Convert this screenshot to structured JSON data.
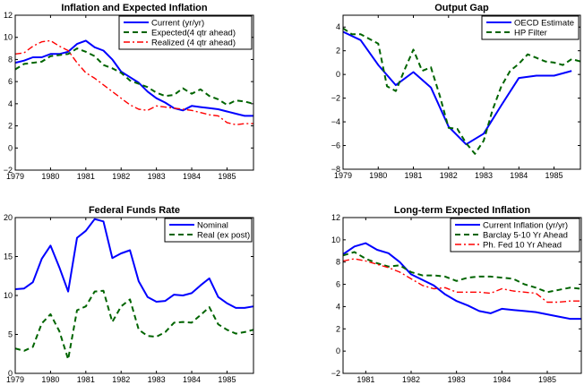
{
  "chart_data": [
    {
      "type": "line",
      "title": "Inflation and Expected Inflation",
      "xlabel": "",
      "ylabel": "",
      "xlim": [
        1979,
        1985.75
      ],
      "ylim": [
        -2,
        12
      ],
      "xticks": [
        1979,
        1980,
        1981,
        1982,
        1983,
        1984,
        1985
      ],
      "yticks": [
        -2,
        0,
        2,
        4,
        6,
        8,
        10,
        12
      ],
      "grid": false,
      "legend_position": "top-right",
      "x": [
        1979,
        1979.25,
        1979.5,
        1979.75,
        1980,
        1980.25,
        1980.5,
        1980.75,
        1981,
        1981.25,
        1981.5,
        1981.75,
        1982,
        1982.25,
        1982.5,
        1982.75,
        1983,
        1983.25,
        1983.5,
        1983.75,
        1984,
        1984.25,
        1984.5,
        1984.75,
        1985,
        1985.25,
        1985.5,
        1985.75
      ],
      "series": [
        {
          "name": "Current (yr/yr)",
          "style": "solid",
          "color": "#0000ff",
          "values": [
            7.7,
            7.9,
            8.2,
            8.2,
            8.5,
            8.5,
            8.7,
            9.4,
            9.7,
            9.1,
            8.8,
            8.0,
            6.9,
            6.4,
            5.9,
            5.1,
            4.5,
            4.1,
            3.6,
            3.4,
            3.8,
            3.7,
            3.6,
            3.5,
            3.3,
            3.1,
            2.9,
            2.9
          ]
        },
        {
          "name": "Expected(4 qtr ahead)",
          "style": "dashed",
          "color": "#006400",
          "values": [
            7.1,
            7.6,
            7.7,
            7.8,
            8.3,
            8.4,
            8.5,
            9.0,
            8.7,
            8.3,
            7.5,
            7.2,
            6.8,
            6.1,
            5.8,
            5.5,
            5.0,
            4.7,
            4.8,
            5.4,
            4.9,
            5.3,
            4.7,
            4.4,
            3.9,
            4.3,
            4.2,
            4.0
          ]
        },
        {
          "name": "Realized (4 qtr ahead)",
          "style": "dashdot",
          "color": "#ff0000",
          "values": [
            8.5,
            8.6,
            9.2,
            9.6,
            9.7,
            9.2,
            8.8,
            7.7,
            6.8,
            6.3,
            5.7,
            5.1,
            4.5,
            3.9,
            3.5,
            3.4,
            3.8,
            3.7,
            3.6,
            3.5,
            3.4,
            3.2,
            3.0,
            2.9,
            2.3,
            2.1,
            2.2,
            2.2
          ]
        }
      ]
    },
    {
      "type": "line",
      "title": "Output Gap",
      "xlabel": "",
      "ylabel": "",
      "xlim": [
        1979,
        1985.75
      ],
      "ylim": [
        -8,
        5
      ],
      "xticks": [
        1979,
        1980,
        1981,
        1982,
        1983,
        1984,
        1985
      ],
      "yticks": [
        -8,
        -6,
        -4,
        -2,
        0,
        2,
        4
      ],
      "grid": false,
      "legend_position": "top-right",
      "series": [
        {
          "name": "OECD Estimate",
          "style": "solid",
          "color": "#0000ff",
          "x": [
            1979,
            1979.5,
            1980,
            1980.5,
            1981,
            1981.5,
            1982,
            1982.5,
            1983,
            1983.5,
            1984,
            1984.5,
            1985,
            1985.5
          ],
          "values": [
            3.6,
            2.9,
            0.8,
            -0.9,
            0.2,
            -1.1,
            -4.4,
            -5.9,
            -5.0,
            -2.6,
            -0.3,
            -0.1,
            -0.1,
            0.3
          ]
        },
        {
          "name": "HP Filter",
          "style": "dashed",
          "color": "#006400",
          "x": [
            1979,
            1979.25,
            1979.5,
            1979.75,
            1980,
            1980.25,
            1980.5,
            1980.75,
            1981,
            1981.25,
            1981.5,
            1981.75,
            1982,
            1982.25,
            1982.5,
            1982.75,
            1983,
            1983.25,
            1983.5,
            1983.75,
            1984,
            1984.25,
            1984.5,
            1984.75,
            1985,
            1985.25,
            1985.5,
            1985.75
          ],
          "values": [
            3.9,
            3.4,
            3.4,
            3.0,
            2.6,
            -1.0,
            -1.4,
            0.4,
            2.1,
            0.3,
            0.6,
            -1.8,
            -4.5,
            -4.6,
            -5.8,
            -6.7,
            -5.6,
            -3.0,
            -1.0,
            0.3,
            0.9,
            1.7,
            1.4,
            1.1,
            1.0,
            0.8,
            1.3,
            1.1
          ]
        }
      ]
    },
    {
      "type": "line",
      "title": "Federal Funds Rate",
      "xlabel": "",
      "ylabel": "",
      "xlim": [
        1979,
        1985.75
      ],
      "ylim": [
        0,
        20
      ],
      "xticks": [
        1979,
        1980,
        1981,
        1982,
        1983,
        1984,
        1985
      ],
      "yticks": [
        0,
        5,
        10,
        15,
        20
      ],
      "grid": false,
      "legend_position": "top-right",
      "x": [
        1979,
        1979.25,
        1979.5,
        1979.75,
        1980,
        1980.25,
        1980.5,
        1980.75,
        1981,
        1981.25,
        1981.5,
        1981.75,
        1982,
        1982.25,
        1982.5,
        1982.75,
        1983,
        1983.25,
        1983.5,
        1983.75,
        1984,
        1984.25,
        1984.5,
        1984.75,
        1985,
        1985.25,
        1985.5,
        1985.75
      ],
      "series": [
        {
          "name": "Nominal",
          "style": "solid",
          "color": "#0000ff",
          "values": [
            10.8,
            10.9,
            11.7,
            14.7,
            16.4,
            13.6,
            10.5,
            17.4,
            18.3,
            19.8,
            19.5,
            14.8,
            15.4,
            15.8,
            11.8,
            9.8,
            9.2,
            9.3,
            10.1,
            10.0,
            10.3,
            11.3,
            12.2,
            9.8,
            9.0,
            8.4,
            8.4,
            8.6
          ]
        },
        {
          "name": "Real (ex post)",
          "style": "dashed",
          "color": "#006400",
          "values": [
            3.2,
            2.9,
            3.4,
            6.4,
            7.6,
            5.4,
            1.8,
            8.1,
            8.6,
            10.5,
            10.6,
            6.6,
            8.6,
            9.5,
            5.6,
            4.8,
            4.7,
            5.3,
            6.5,
            6.6,
            6.5,
            7.5,
            8.5,
            6.3,
            5.6,
            5.1,
            5.3,
            5.6
          ]
        }
      ]
    },
    {
      "type": "line",
      "title": "Long-term Expected Inflation",
      "xlabel": "",
      "ylabel": "",
      "xlim": [
        1980.5,
        1985.75
      ],
      "ylim": [
        -2,
        12
      ],
      "xticks": [
        1981,
        1982,
        1983,
        1984,
        1985
      ],
      "yticks": [
        -2,
        0,
        2,
        4,
        6,
        8,
        10,
        12
      ],
      "grid": false,
      "legend_position": "top-right",
      "x": [
        1980.5,
        1980.75,
        1981,
        1981.25,
        1981.5,
        1981.75,
        1982,
        1982.25,
        1982.5,
        1982.75,
        1983,
        1983.25,
        1983.5,
        1983.75,
        1984,
        1984.25,
        1984.5,
        1984.75,
        1985,
        1985.25,
        1985.5,
        1985.75
      ],
      "series": [
        {
          "name": "Current Inflation (yr/yr)",
          "style": "solid",
          "color": "#0000ff",
          "values": [
            8.7,
            9.4,
            9.7,
            9.1,
            8.8,
            8.0,
            6.9,
            6.4,
            5.9,
            5.1,
            4.5,
            4.1,
            3.6,
            3.4,
            3.8,
            3.7,
            3.6,
            3.5,
            3.3,
            3.1,
            2.9,
            2.9
          ]
        },
        {
          "name": "Barclay 5-10 Yr Ahead",
          "style": "dashed",
          "color": "#006400",
          "values": [
            8.6,
            8.9,
            8.3,
            7.9,
            7.6,
            7.7,
            7.1,
            6.8,
            6.8,
            6.7,
            6.3,
            6.6,
            6.7,
            6.7,
            6.6,
            6.5,
            6.0,
            5.7,
            5.3,
            5.5,
            5.7,
            5.6
          ]
        },
        {
          "name": "Ph. Fed 10 Yr Ahead",
          "style": "dashdot",
          "color": "#ff0000",
          "values": [
            8.1,
            8.3,
            8.1,
            7.8,
            7.5,
            7.1,
            6.5,
            5.9,
            5.6,
            5.7,
            5.3,
            5.3,
            5.3,
            5.2,
            5.6,
            5.4,
            5.3,
            5.2,
            4.4,
            4.4,
            4.5,
            4.5
          ]
        }
      ]
    }
  ]
}
